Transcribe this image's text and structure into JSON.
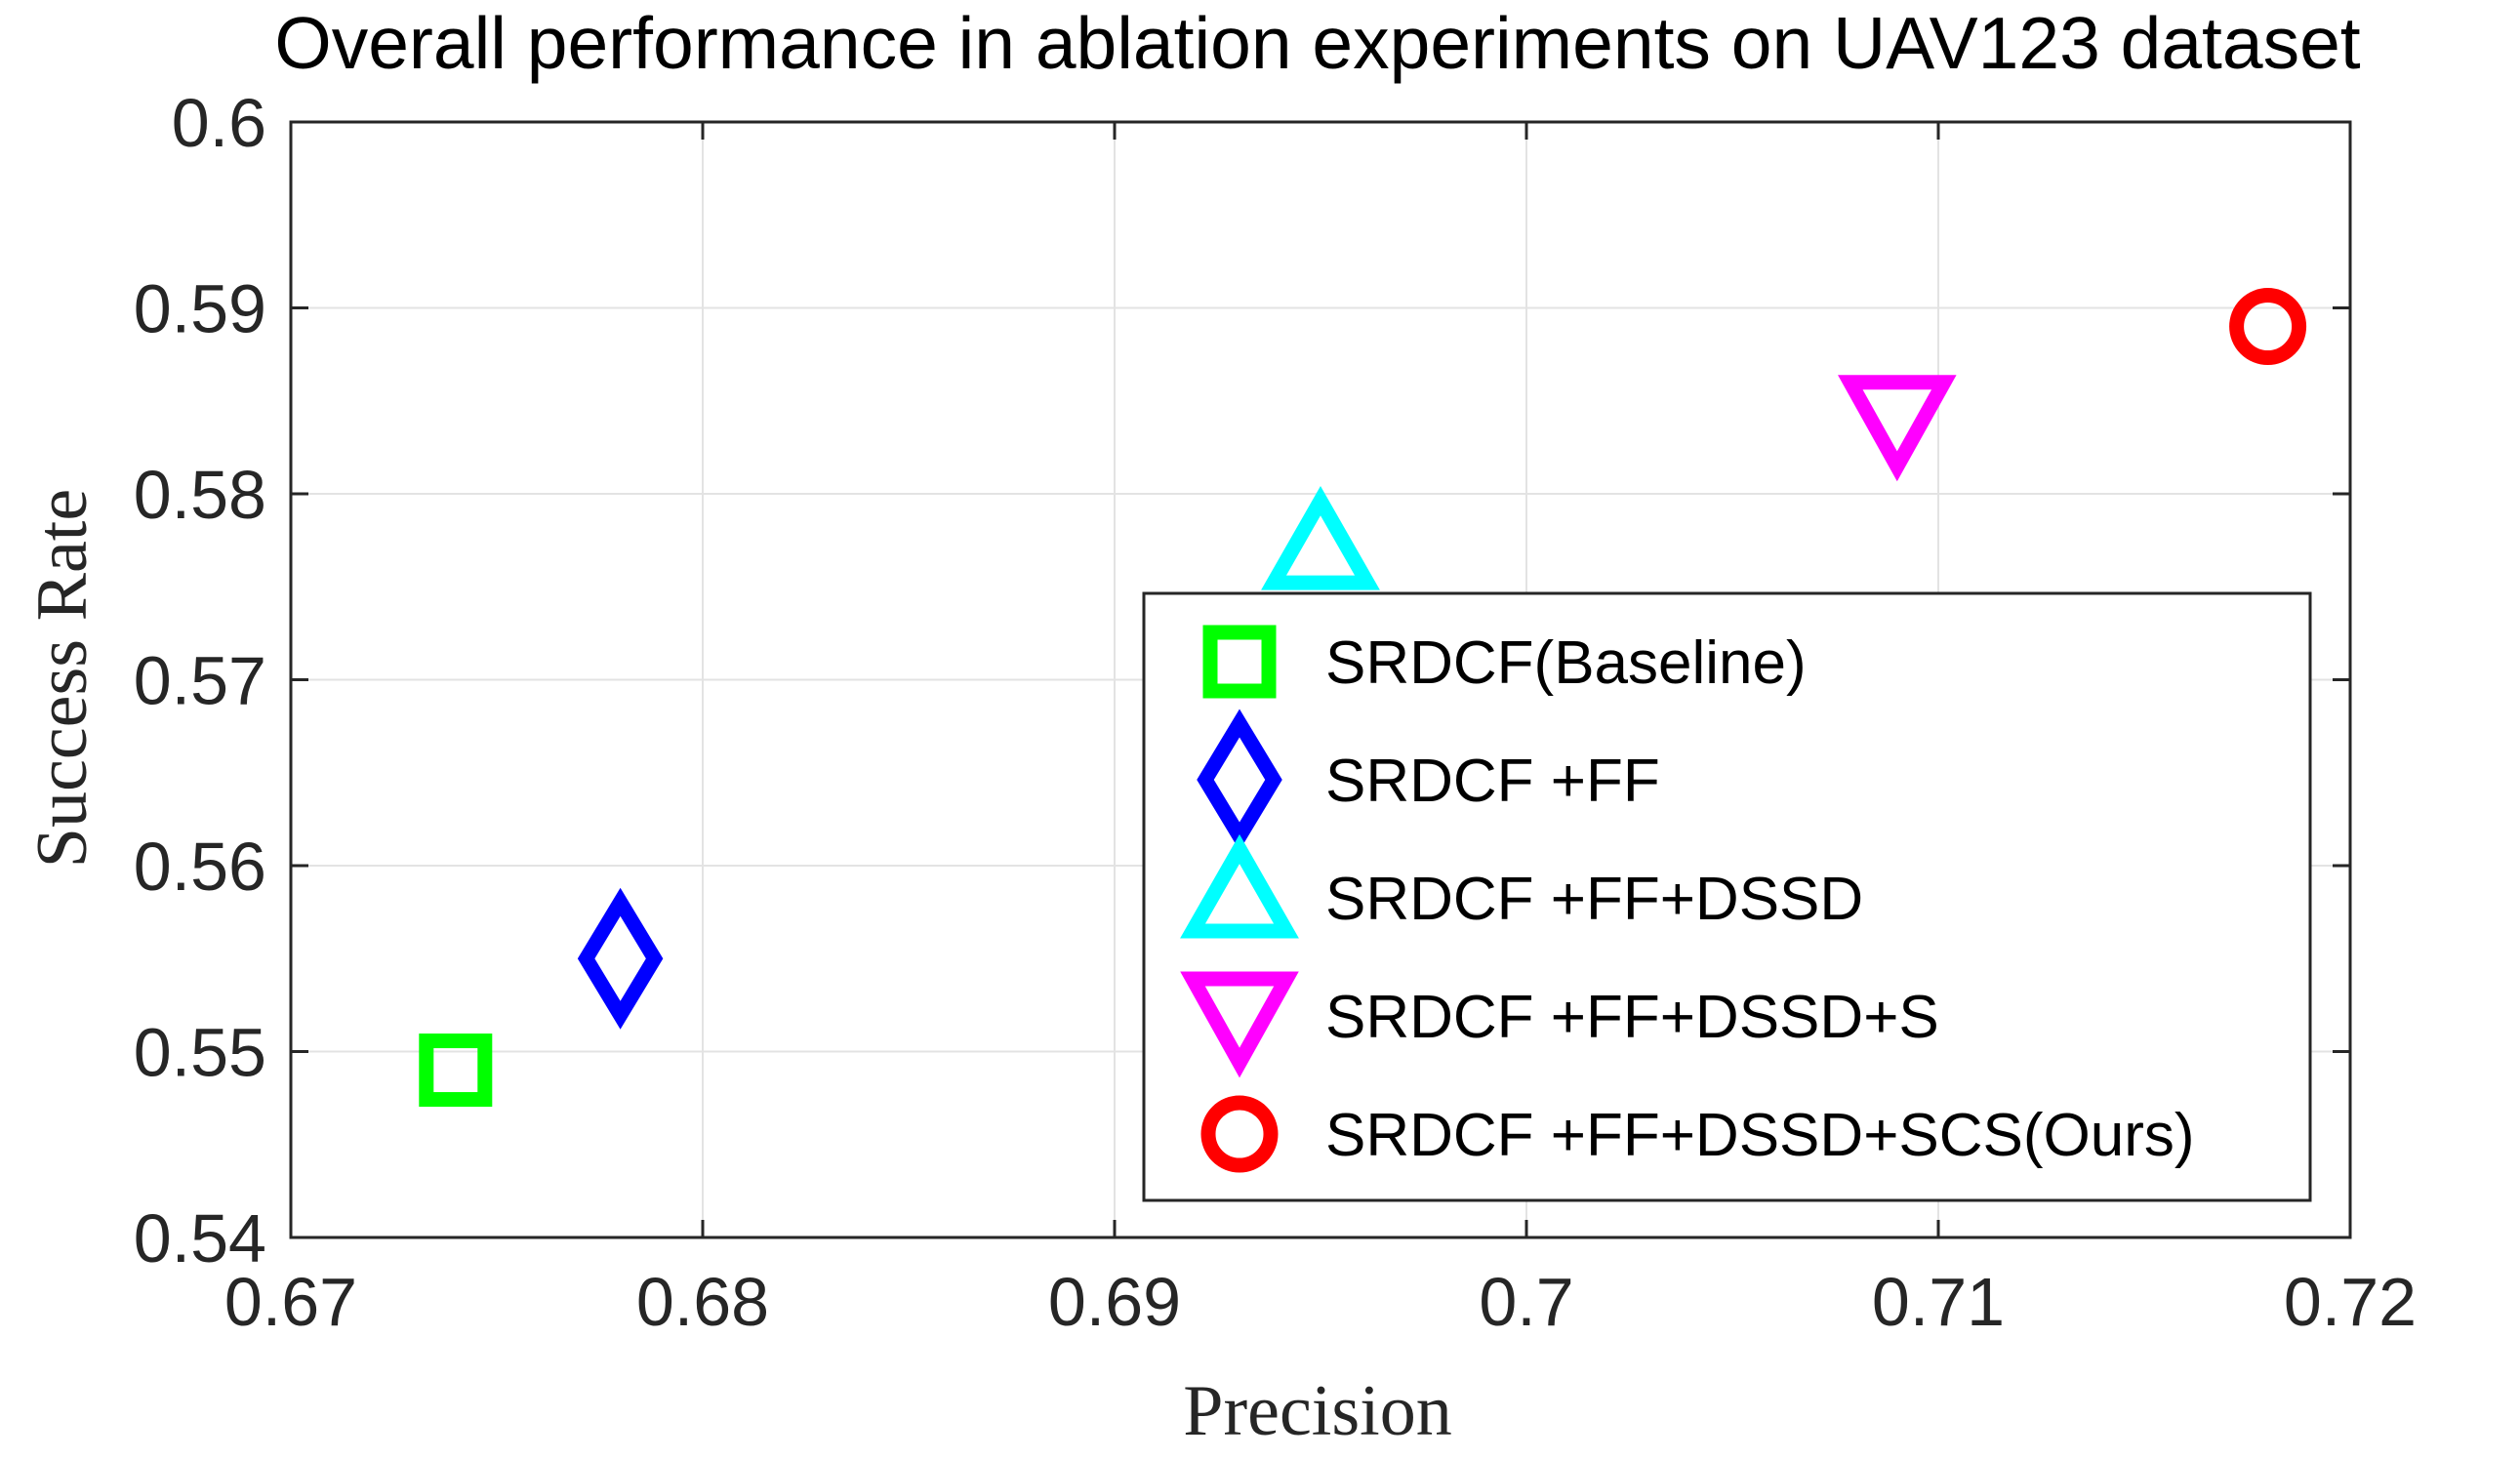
{
  "chart_data": {
    "type": "scatter",
    "title": "Overall performance in ablation experiments on UAV123 dataset",
    "xlabel": "Precision",
    "ylabel": "Success Rate",
    "xlim": [
      0.67,
      0.72
    ],
    "ylim": [
      0.54,
      0.6
    ],
    "xticks": [
      "0.67",
      "0.68",
      "0.69",
      "0.7",
      "0.71",
      "0.72"
    ],
    "yticks": [
      "0.54",
      "0.55",
      "0.56",
      "0.57",
      "0.58",
      "0.59",
      "0.6"
    ],
    "grid": true,
    "legend_position": "lower-right",
    "series": [
      {
        "name": "SRDCF(Baseline)",
        "marker": "square",
        "color": "#00ff00",
        "x": 0.674,
        "y": 0.549
      },
      {
        "name": "SRDCF +FF",
        "marker": "diamond",
        "color": "#0000ff",
        "x": 0.678,
        "y": 0.555
      },
      {
        "name": "SRDCF +FF+DSSD",
        "marker": "triangle-up",
        "color": "#00ffff",
        "x": 0.695,
        "y": 0.577
      },
      {
        "name": "SRDCF +FF+DSSD+S",
        "marker": "triangle-down",
        "color": "#ff00ff",
        "x": 0.709,
        "y": 0.584
      },
      {
        "name": "SRDCF +FF+DSSD+SCS(Ours)",
        "marker": "circle",
        "color": "#ff0000",
        "x": 0.718,
        "y": 0.589
      }
    ]
  }
}
